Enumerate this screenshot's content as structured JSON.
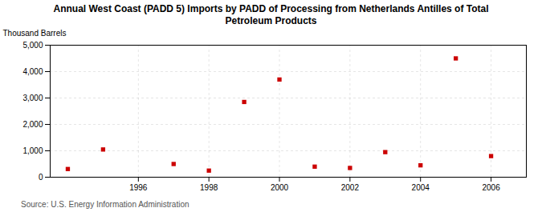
{
  "chart_data": {
    "type": "scatter",
    "title": "Annual West Coast (PADD 5) Imports by PADD of Processing from Netherlands Antilles of Total\nPetroleum Products",
    "ylabel": "Thousand Barrels",
    "source": "Source: U.S. Energy Information Administration",
    "x": [
      1994,
      1995,
      1997,
      1998,
      1999,
      2000,
      2001,
      2002,
      2003,
      2004,
      2005,
      2006
    ],
    "values": [
      310,
      1050,
      500,
      250,
      2850,
      3700,
      400,
      350,
      950,
      450,
      4500,
      800
    ],
    "color": "#cc0000",
    "marker": "square",
    "xlim": [
      1993.5,
      2007.0
    ],
    "xticks": [
      1996,
      1998,
      2000,
      2002,
      2004,
      2006
    ],
    "ylim": [
      0,
      5000
    ],
    "yticks": [
      0,
      {
        "value": 1000,
        "label": "1,000"
      },
      {
        "value": 2000,
        "label": "2,000"
      },
      {
        "value": 3000,
        "label": "3,000"
      },
      {
        "value": 4000,
        "label": "4,000"
      },
      {
        "value": 5000,
        "label": "5,000"
      }
    ],
    "grid": true
  }
}
